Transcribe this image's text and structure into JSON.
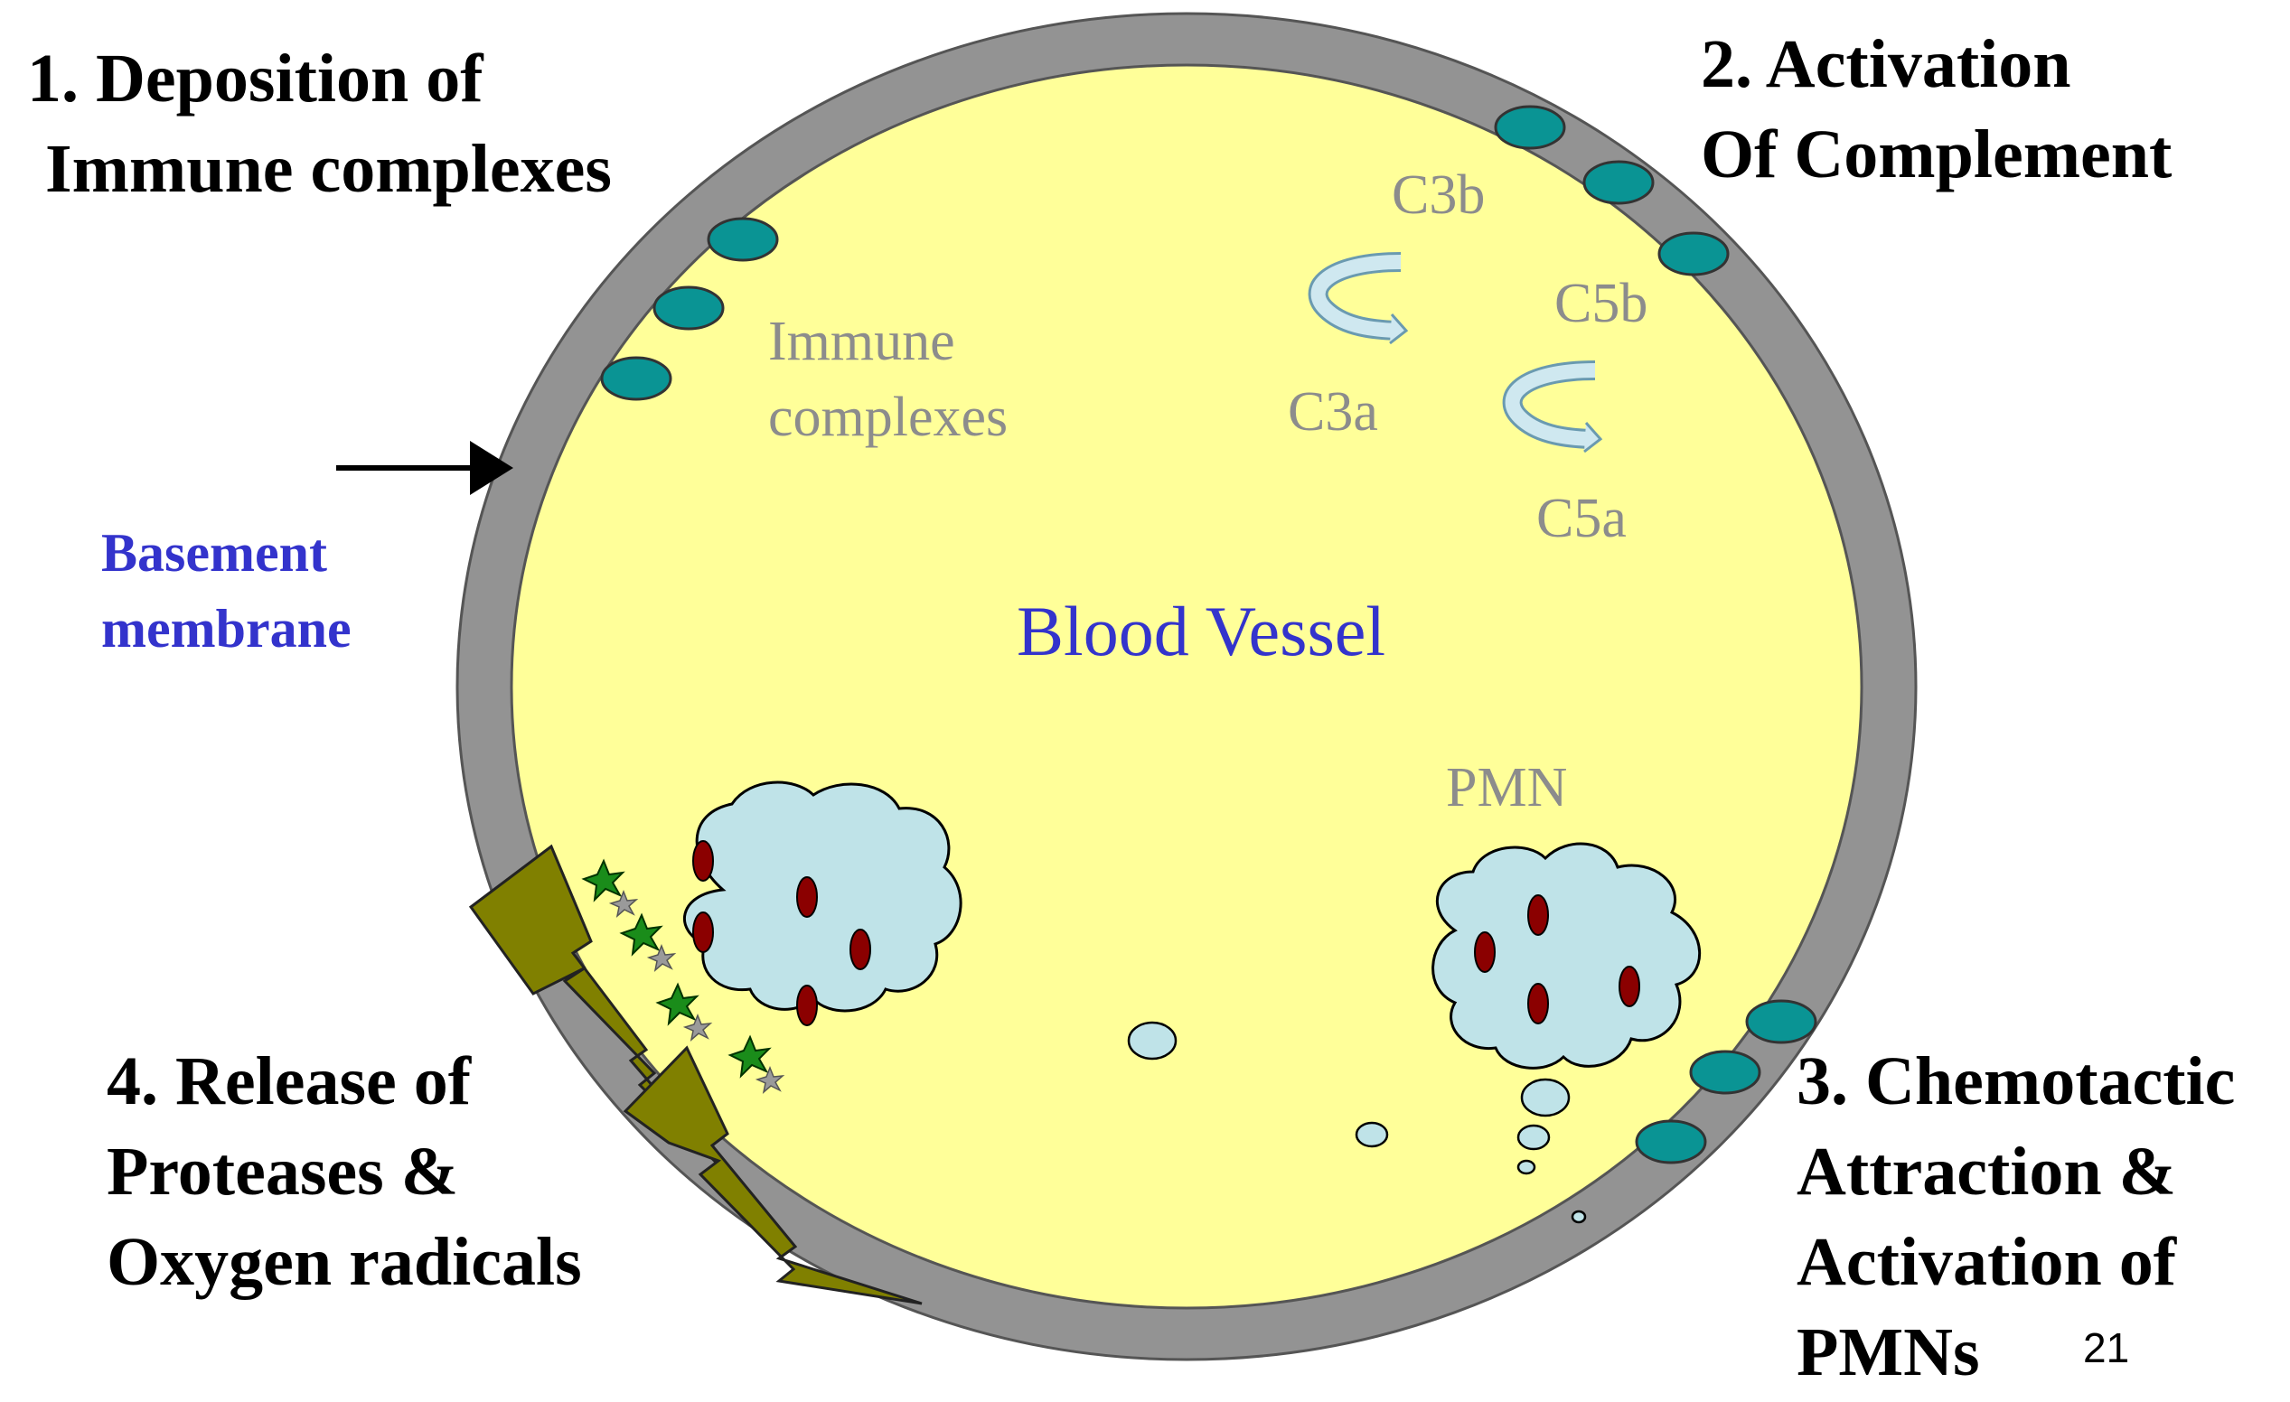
{
  "steps": {
    "step1": {
      "line1": "1.   Deposition of",
      "line2": "Immune complexes"
    },
    "step2": {
      "line1": "2. Activation",
      "line2": "Of  Complement"
    },
    "step3": {
      "line1": "3. Chemotactic",
      "line2": "Attraction &",
      "line3": "Activation of",
      "line4": "PMNs"
    },
    "step4": {
      "line1": "4. Release of",
      "line2": "Proteases &",
      "line3": "Oxygen radicals"
    }
  },
  "labels": {
    "basement_line1": "Basement",
    "basement_line2": "membrane",
    "immune_line1": "Immune",
    "immune_line2": "complexes",
    "c3b": "C3b",
    "c3a": "C3a",
    "c5b": "C5b",
    "c5a": "C5a",
    "blood_vessel": "Blood Vessel",
    "pmn": "PMN",
    "page_number": "21"
  },
  "colors": {
    "vessel_fill": "#ffff99",
    "membrane": "#939393",
    "immune_complex": "#0a9494",
    "pmn_cell": "#bfe3e8",
    "nucleus": "#8b0000",
    "lightning": "#808000",
    "label_gray": "#8c8c8c",
    "label_blue": "#3333cc"
  }
}
